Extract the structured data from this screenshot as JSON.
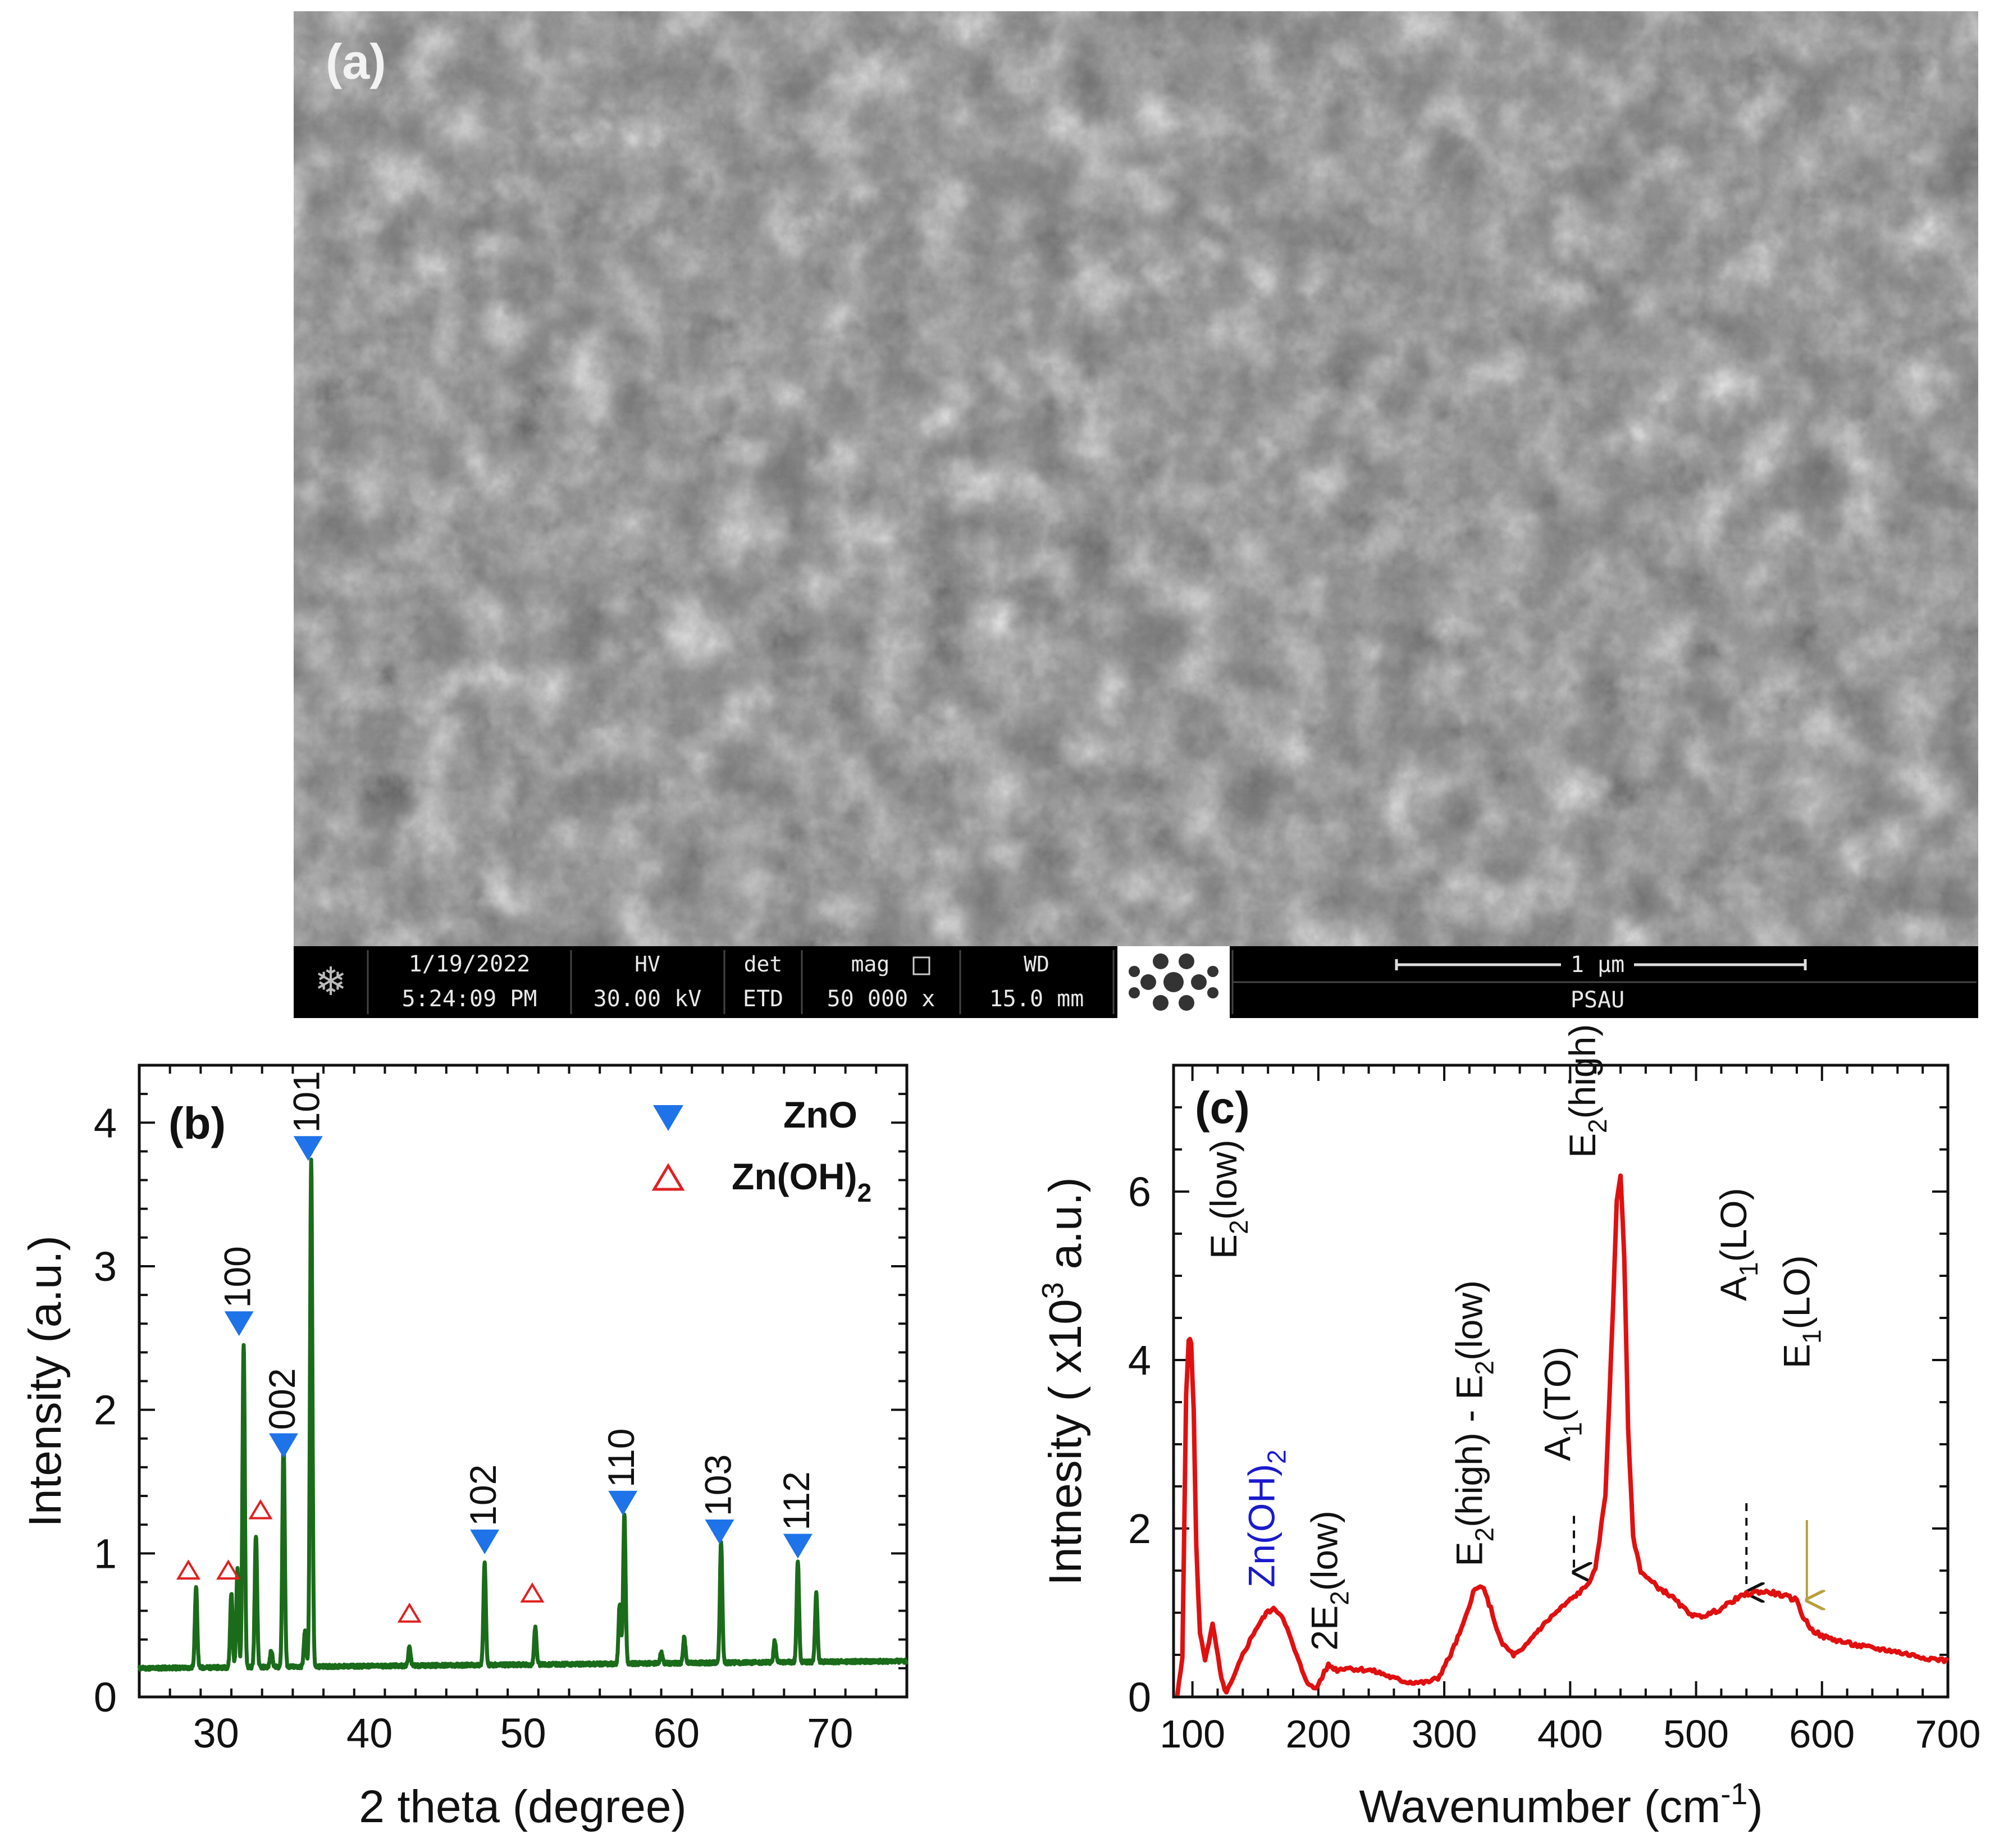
{
  "panels": {
    "a": {
      "label": "(a)",
      "sem_bar": {
        "date": "1/19/2022",
        "time": "5:24:09 PM",
        "hv_label": "HV",
        "hv_value": "30.00 kV",
        "det_label": "det",
        "det_value": "ETD",
        "mag_label": "mag",
        "mag_value": "50 000 x",
        "wd_label": "WD",
        "wd_value": "15.0 mm",
        "scale_label": "1 μm",
        "institution": "PSAU"
      }
    }
  },
  "chart_data": [
    {
      "id": "b",
      "panel_label": "(b)",
      "type": "line",
      "title": "",
      "xlabel": "2 theta (degree)",
      "ylabel": "Intensity (a.u.)",
      "xlim": [
        25,
        75
      ],
      "ylim": [
        0,
        4.4
      ],
      "xticks": [
        30,
        40,
        50,
        60,
        70
      ],
      "yticks": [
        0,
        1,
        2,
        3,
        4
      ],
      "grid": false,
      "color": "#1a6b1a",
      "baseline": 0.2,
      "baseline_tail": 0.25,
      "peaks": [
        {
          "x": 28.7,
          "y": 0.76
        },
        {
          "x": 31.0,
          "y": 0.72
        },
        {
          "x": 31.4,
          "y": 0.88
        },
        {
          "x": 31.8,
          "y": 2.45
        },
        {
          "x": 32.6,
          "y": 1.12
        },
        {
          "x": 33.6,
          "y": 0.32
        },
        {
          "x": 34.4,
          "y": 1.78
        },
        {
          "x": 35.8,
          "y": 0.45
        },
        {
          "x": 36.2,
          "y": 3.72
        },
        {
          "x": 42.6,
          "y": 0.33
        },
        {
          "x": 47.5,
          "y": 0.92
        },
        {
          "x": 50.8,
          "y": 0.46
        },
        {
          "x": 56.3,
          "y": 0.62
        },
        {
          "x": 56.6,
          "y": 1.25
        },
        {
          "x": 59.0,
          "y": 0.28
        },
        {
          "x": 60.5,
          "y": 0.38
        },
        {
          "x": 62.9,
          "y": 1.05
        },
        {
          "x": 66.4,
          "y": 0.35
        },
        {
          "x": 67.9,
          "y": 0.9
        },
        {
          "x": 69.1,
          "y": 0.68
        }
      ],
      "zno_markers": [
        {
          "x": 31.5,
          "y": 2.6,
          "label": "100"
        },
        {
          "x": 34.4,
          "y": 1.75,
          "label": "002"
        },
        {
          "x": 36.0,
          "y": 3.82,
          "label": "101"
        },
        {
          "x": 47.5,
          "y": 1.08,
          "label": "102"
        },
        {
          "x": 56.5,
          "y": 1.35,
          "label": "110"
        },
        {
          "x": 62.8,
          "y": 1.15,
          "label": "103"
        },
        {
          "x": 67.9,
          "y": 1.05,
          "label": "112"
        }
      ],
      "znoh_markers": [
        {
          "x": 28.2,
          "y": 0.88
        },
        {
          "x": 30.8,
          "y": 0.88
        },
        {
          "x": 32.9,
          "y": 1.3
        },
        {
          "x": 42.6,
          "y": 0.58
        },
        {
          "x": 50.6,
          "y": 0.72
        }
      ],
      "legend": {
        "placement": "top-right",
        "entries": [
          {
            "name": "ZnO",
            "marker": "filled-triangle-down",
            "color": "#1e73e8"
          },
          {
            "name": "Zn(OH)",
            "subscript": "2",
            "marker": "open-triangle-up",
            "color": "#e02020"
          }
        ]
      }
    },
    {
      "id": "c",
      "panel_label": "(c)",
      "type": "line",
      "title": "",
      "xlabel": "Wavenumber (cm",
      "xlabel_sup": "-1",
      "xlabel_end": ")",
      "ylabel": "Intnesity ( x10",
      "ylabel_sup": "3",
      "ylabel_end": " a.u.)",
      "xlim": [
        85,
        700
      ],
      "ylim": [
        0,
        7.5
      ],
      "xticks": [
        100,
        200,
        300,
        400,
        500,
        600,
        700
      ],
      "yticks": [
        0,
        2,
        4,
        6
      ],
      "grid": false,
      "color": "#e01010",
      "points": [
        [
          88,
          0.02
        ],
        [
          92,
          0.45
        ],
        [
          95,
          3.6
        ],
        [
          97,
          4.25
        ],
        [
          99,
          4.2
        ],
        [
          101,
          3.4
        ],
        [
          103,
          1.8
        ],
        [
          106,
          0.75
        ],
        [
          110,
          0.45
        ],
        [
          113,
          0.65
        ],
        [
          116,
          0.85
        ],
        [
          119,
          0.6
        ],
        [
          123,
          0.2
        ],
        [
          127,
          0.05
        ],
        [
          132,
          0.2
        ],
        [
          140,
          0.5
        ],
        [
          150,
          0.8
        ],
        [
          160,
          1.02
        ],
        [
          166,
          1.04
        ],
        [
          172,
          0.95
        ],
        [
          180,
          0.6
        ],
        [
          187,
          0.32
        ],
        [
          193,
          0.13
        ],
        [
          198,
          0.1
        ],
        [
          203,
          0.24
        ],
        [
          208,
          0.38
        ],
        [
          215,
          0.32
        ],
        [
          222,
          0.35
        ],
        [
          230,
          0.33
        ],
        [
          240,
          0.32
        ],
        [
          250,
          0.28
        ],
        [
          260,
          0.22
        ],
        [
          270,
          0.18
        ],
        [
          285,
          0.17
        ],
        [
          295,
          0.22
        ],
        [
          305,
          0.5
        ],
        [
          315,
          0.85
        ],
        [
          323,
          1.25
        ],
        [
          330,
          1.32
        ],
        [
          337,
          1.05
        ],
        [
          345,
          0.65
        ],
        [
          355,
          0.5
        ],
        [
          362,
          0.55
        ],
        [
          372,
          0.75
        ],
        [
          385,
          0.95
        ],
        [
          400,
          1.15
        ],
        [
          412,
          1.3
        ],
        [
          420,
          1.5
        ],
        [
          428,
          2.4
        ],
        [
          434,
          4.6
        ],
        [
          437,
          5.9
        ],
        [
          440,
          6.2
        ],
        [
          443,
          5.2
        ],
        [
          446,
          3.2
        ],
        [
          450,
          1.9
        ],
        [
          456,
          1.5
        ],
        [
          462,
          1.4
        ],
        [
          470,
          1.3
        ],
        [
          480,
          1.2
        ],
        [
          490,
          1.05
        ],
        [
          500,
          0.95
        ],
        [
          510,
          0.98
        ],
        [
          520,
          1.05
        ],
        [
          530,
          1.15
        ],
        [
          540,
          1.22
        ],
        [
          550,
          1.25
        ],
        [
          560,
          1.24
        ],
        [
          570,
          1.2
        ],
        [
          580,
          1.15
        ],
        [
          585,
          0.95
        ],
        [
          592,
          0.8
        ],
        [
          600,
          0.72
        ],
        [
          610,
          0.68
        ],
        [
          625,
          0.62
        ],
        [
          640,
          0.58
        ],
        [
          655,
          0.55
        ],
        [
          670,
          0.5
        ],
        [
          685,
          0.46
        ],
        [
          700,
          0.43
        ]
      ],
      "annotations": [
        {
          "text": "E",
          "sub": "2",
          "rest": "(low)",
          "x": 135,
          "y": 5.2,
          "rotate": true,
          "color": "#111"
        },
        {
          "text": "Zn(OH)",
          "sub": "2",
          "rest": "",
          "x": 165,
          "y": 1.3,
          "rotate": true,
          "color": "#1a1acc"
        },
        {
          "text": "2E",
          "sub": "2",
          "rest": "(low)",
          "x": 215,
          "y": 0.55,
          "rotate": true,
          "color": "#111"
        },
        {
          "text": "E",
          "sub": "2",
          "rest": "(high) - E",
          "sub2": "2",
          "rest2": "(low)",
          "x": 330,
          "y": 1.55,
          "rotate": true,
          "color": "#111"
        },
        {
          "text": "A",
          "sub": "1",
          "rest": "(TO)",
          "x": 400,
          "y": 2.8,
          "rotate": true,
          "color": "#111"
        },
        {
          "text": "E",
          "sub": "2",
          "rest": "(high)",
          "x": 420,
          "y": 6.4,
          "rotate": true,
          "color": "#111"
        },
        {
          "text": "A",
          "sub": "1",
          "rest": "(LO)",
          "x": 540,
          "y": 4.7,
          "rotate": true,
          "color": "#111"
        },
        {
          "text": "E",
          "sub": "1",
          "rest": "(LO)",
          "x": 590,
          "y": 3.9,
          "rotate": true,
          "color": "#111"
        }
      ],
      "arrows": [
        {
          "x": 403,
          "y_from": 2.15,
          "y_to": 1.48,
          "style": "dashed",
          "color": "#111"
        },
        {
          "x": 540,
          "y_from": 2.3,
          "y_to": 1.24,
          "style": "dashed",
          "color": "#111"
        },
        {
          "x": 588,
          "y_from": 2.1,
          "y_to": 1.15,
          "style": "solid",
          "color": "#b8a040"
        }
      ]
    }
  ]
}
